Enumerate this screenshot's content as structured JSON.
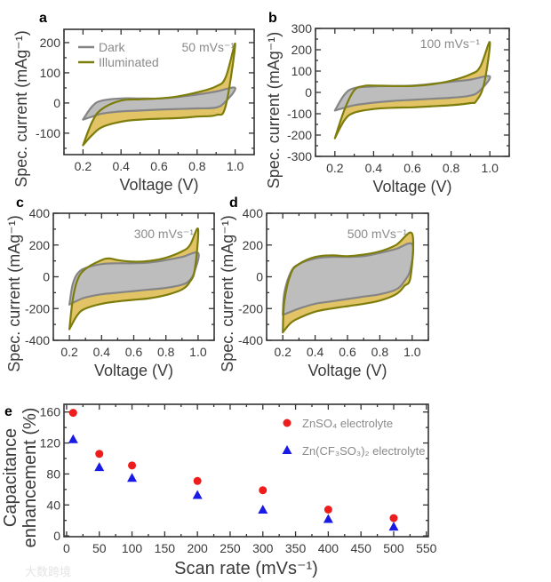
{
  "colors": {
    "illuminated_fill": "#e2c466",
    "illuminated_line": "#7d7d0c",
    "dark_fill": "#bdbdbd",
    "dark_line": "#858585",
    "znso4": "#ee1c1c",
    "zncf3so3": "#1a1ae6",
    "axis": "#333333"
  },
  "watermark": "大数跨境",
  "chart_data": [
    {
      "panel": "a",
      "type": "line",
      "annotation": "50 mVs⁻¹",
      "xlabel": "Voltage (V)",
      "ylabel": "Spec. current (mAg⁻¹)",
      "xlim": [
        0.1,
        1.1
      ],
      "ylim": [
        -171,
        244
      ],
      "xticks": [
        0.2,
        0.4,
        0.6,
        0.8,
        1.0
      ],
      "xtick_labels": [
        "0.2",
        "0.4",
        "0.6",
        "0.8",
        "1.0"
      ],
      "yticks": [
        -100,
        0,
        100,
        200
      ],
      "ytick_labels": [
        "-100",
        "0",
        "100",
        "200"
      ],
      "xminor": 0.1,
      "yminor": 50,
      "legend": [
        "Dark",
        "Illuminated"
      ],
      "series": [
        {
          "name": "Illuminated",
          "forward": {
            "x": [
              0.2,
              0.25,
              0.3,
              0.4,
              0.5,
              0.6,
              0.7,
              0.8,
              0.9,
              0.95,
              1.0
            ],
            "y": [
              -140,
              -60,
              -20,
              8,
              12,
              15,
              22,
              35,
              55,
              85,
              195
            ]
          },
          "reverse": {
            "x": [
              1.0,
              0.95,
              0.9,
              0.8,
              0.7,
              0.6,
              0.5,
              0.4,
              0.3,
              0.25,
              0.2
            ],
            "y": [
              195,
              -10,
              -40,
              -45,
              -50,
              -52,
              -55,
              -62,
              -80,
              -105,
              -140
            ]
          }
        },
        {
          "name": "Dark",
          "forward": {
            "x": [
              0.2,
              0.25,
              0.3,
              0.4,
              0.5,
              0.6,
              0.7,
              0.8,
              0.9,
              1.0
            ],
            "y": [
              -55,
              -10,
              8,
              15,
              15,
              15,
              20,
              28,
              38,
              50
            ]
          },
          "reverse": {
            "x": [
              1.0,
              0.95,
              0.9,
              0.8,
              0.7,
              0.6,
              0.5,
              0.4,
              0.3,
              0.25,
              0.2
            ],
            "y": [
              50,
              5,
              -15,
              -18,
              -20,
              -22,
              -25,
              -28,
              -35,
              -45,
              -55
            ]
          }
        }
      ]
    },
    {
      "panel": "b",
      "type": "line",
      "annotation": "100 mVs⁻¹",
      "xlabel": "Voltage (V)",
      "ylabel": "Spec. current (mAg⁻¹)",
      "xlim": [
        0.1,
        1.1
      ],
      "ylim": [
        -300,
        300
      ],
      "xticks": [
        0.2,
        0.4,
        0.6,
        0.8,
        1.0
      ],
      "xtick_labels": [
        "0.2",
        "0.4",
        "0.6",
        "0.8",
        "1.0"
      ],
      "yticks": [
        -300,
        -200,
        -100,
        0,
        100,
        200,
        300
      ],
      "ytick_labels": [
        "-300",
        "-200",
        "-100",
        "0",
        "100",
        "200",
        "300"
      ],
      "xminor": 0.1,
      "yminor": 50,
      "series": [
        {
          "name": "Illuminated",
          "forward": {
            "x": [
              0.2,
              0.25,
              0.3,
              0.35,
              0.4,
              0.5,
              0.6,
              0.7,
              0.8,
              0.9,
              0.95,
              1.0
            ],
            "y": [
              -215,
              -80,
              10,
              30,
              32,
              30,
              30,
              38,
              55,
              85,
              120,
              235
            ]
          },
          "reverse": {
            "x": [
              1.0,
              0.97,
              0.93,
              0.9,
              0.8,
              0.7,
              0.6,
              0.5,
              0.4,
              0.3,
              0.25,
              0.2
            ],
            "y": [
              235,
              40,
              -40,
              -50,
              -60,
              -65,
              -70,
              -72,
              -78,
              -95,
              -130,
              -215
            ]
          }
        },
        {
          "name": "Dark",
          "forward": {
            "x": [
              0.2,
              0.25,
              0.3,
              0.4,
              0.5,
              0.6,
              0.7,
              0.8,
              0.9,
              1.0
            ],
            "y": [
              -85,
              -10,
              20,
              28,
              30,
              32,
              40,
              50,
              60,
              75
            ]
          },
          "reverse": {
            "x": [
              1.0,
              0.95,
              0.9,
              0.8,
              0.7,
              0.6,
              0.5,
              0.4,
              0.3,
              0.25,
              0.2
            ],
            "y": [
              75,
              10,
              -15,
              -25,
              -30,
              -35,
              -40,
              -48,
              -60,
              -72,
              -85
            ]
          }
        }
      ]
    },
    {
      "panel": "c",
      "type": "line",
      "annotation": "300 mVs⁻¹",
      "xlabel": "Voltage (V)",
      "ylabel": "Spec. current (mAg⁻¹)",
      "xlim": [
        0.1,
        1.1
      ],
      "ylim": [
        -400,
        400
      ],
      "xticks": [
        0.2,
        0.4,
        0.6,
        0.8,
        1.0
      ],
      "xtick_labels": [
        "0.2",
        "0.4",
        "0.6",
        "0.8",
        "1.0"
      ],
      "yticks": [
        -400,
        -200,
        0,
        200,
        400
      ],
      "ytick_labels": [
        "-400",
        "-200",
        "0",
        "200",
        "400"
      ],
      "xminor": 0.1,
      "yminor": 100,
      "series": [
        {
          "name": "Illuminated",
          "forward": {
            "x": [
              0.2,
              0.22,
              0.25,
              0.3,
              0.4,
              0.45,
              0.5,
              0.6,
              0.7,
              0.8,
              0.9,
              0.95,
              1.0
            ],
            "y": [
              -330,
              -150,
              -20,
              50,
              105,
              115,
              105,
              95,
              100,
              120,
              160,
              200,
              300
            ]
          },
          "reverse": {
            "x": [
              1.0,
              0.98,
              0.95,
              0.9,
              0.8,
              0.7,
              0.6,
              0.5,
              0.4,
              0.3,
              0.25,
              0.2
            ],
            "y": [
              300,
              50,
              -30,
              -80,
              -115,
              -135,
              -145,
              -155,
              -170,
              -200,
              -240,
              -330
            ]
          }
        },
        {
          "name": "Dark",
          "forward": {
            "x": [
              0.2,
              0.22,
              0.25,
              0.3,
              0.4,
              0.5,
              0.6,
              0.7,
              0.8,
              0.9,
              1.0
            ],
            "y": [
              -175,
              -50,
              20,
              55,
              80,
              85,
              85,
              90,
              105,
              125,
              150
            ]
          },
          "reverse": {
            "x": [
              1.0,
              0.98,
              0.95,
              0.9,
              0.8,
              0.7,
              0.6,
              0.5,
              0.4,
              0.3,
              0.25,
              0.2
            ],
            "y": [
              150,
              40,
              -20,
              -50,
              -70,
              -80,
              -90,
              -100,
              -110,
              -130,
              -150,
              -175
            ]
          }
        }
      ]
    },
    {
      "panel": "d",
      "type": "line",
      "annotation": "500 mVs⁻¹",
      "xlabel": "Voltage (V)",
      "ylabel": "Spec. current (mAg⁻¹)",
      "xlim": [
        0.1,
        1.1
      ],
      "ylim": [
        -400,
        400
      ],
      "xticks": [
        0.2,
        0.4,
        0.6,
        0.8,
        1.0
      ],
      "xtick_labels": [
        "0.2",
        "0.4",
        "0.6",
        "0.8",
        "1.0"
      ],
      "yticks": [
        -400,
        -200,
        0,
        200,
        400
      ],
      "ytick_labels": [
        "-400",
        "-200",
        "0",
        "200",
        "400"
      ],
      "xminor": 0.1,
      "yminor": 100,
      "series": [
        {
          "name": "Illuminated",
          "forward": {
            "x": [
              0.2,
              0.21,
              0.25,
              0.3,
              0.4,
              0.5,
              0.6,
              0.7,
              0.8,
              0.9,
              1.0
            ],
            "y": [
              -350,
              -150,
              20,
              80,
              125,
              135,
              130,
              140,
              160,
              200,
              270
            ]
          },
          "reverse": {
            "x": [
              1.0,
              0.99,
              0.95,
              0.9,
              0.8,
              0.7,
              0.6,
              0.5,
              0.4,
              0.3,
              0.25,
              0.2
            ],
            "y": [
              270,
              0,
              -60,
              -110,
              -150,
              -170,
              -185,
              -200,
              -220,
              -260,
              -290,
              -350
            ]
          }
        },
        {
          "name": "Dark",
          "forward": {
            "x": [
              0.2,
              0.21,
              0.25,
              0.3,
              0.4,
              0.5,
              0.6,
              0.7,
              0.8,
              0.9,
              1.0
            ],
            "y": [
              -240,
              -100,
              30,
              80,
              115,
              125,
              125,
              130,
              150,
              175,
              205
            ]
          },
          "reverse": {
            "x": [
              1.0,
              0.99,
              0.95,
              0.9,
              0.8,
              0.7,
              0.6,
              0.5,
              0.4,
              0.3,
              0.25,
              0.2
            ],
            "y": [
              205,
              50,
              -30,
              -80,
              -110,
              -125,
              -140,
              -155,
              -170,
              -200,
              -220,
              -240
            ]
          }
        }
      ]
    },
    {
      "panel": "e",
      "type": "scatter",
      "xlabel": "Scan rate (mVs⁻¹)",
      "ylabel": [
        "Capacitance",
        "enhancement (%)"
      ],
      "xlim": [
        -4,
        553
      ],
      "ylim": [
        -1,
        170
      ],
      "xticks": [
        0,
        50,
        100,
        150,
        200,
        250,
        300,
        350,
        400,
        450,
        500,
        550
      ],
      "xtick_labels": [
        "0",
        "50",
        "100",
        "150",
        "200",
        "250",
        "300",
        "350",
        "400",
        "450",
        "500",
        "550"
      ],
      "yticks": [
        0,
        40,
        80,
        120,
        160
      ],
      "ytick_labels": [
        "0",
        "40",
        "80",
        "120",
        "160"
      ],
      "xminor": 25,
      "yminor": 20,
      "legend_position": "top-right",
      "series": [
        {
          "name": "ZnSO₄ electrolyte",
          "marker": "circle",
          "x": [
            10,
            50,
            100,
            200,
            300,
            400,
            500
          ],
          "y": [
            159,
            106,
            91,
            71,
            59,
            34,
            23
          ]
        },
        {
          "name": "Zn(CF₃SO₃)₂ electrolyte",
          "marker": "triangle",
          "x": [
            10,
            50,
            100,
            200,
            300,
            400,
            500
          ],
          "y": [
            125,
            89,
            75,
            53,
            34,
            22,
            12
          ]
        }
      ]
    }
  ]
}
